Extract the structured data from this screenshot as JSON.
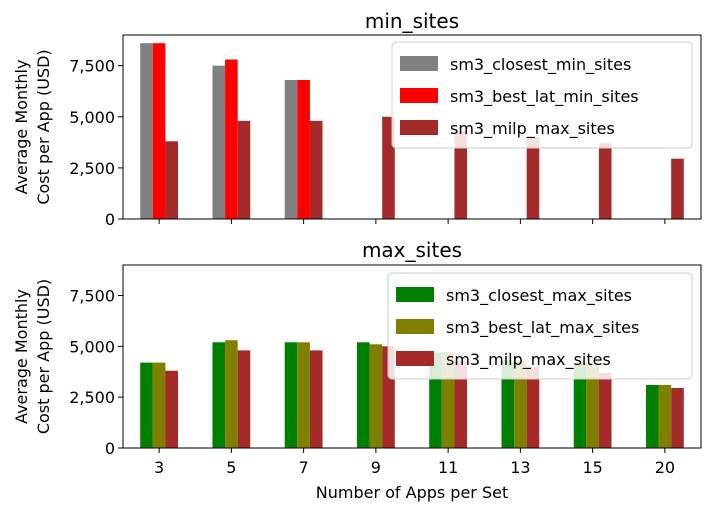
{
  "chart_data": [
    {
      "type": "bar",
      "title": "min_sites",
      "ylabel_lines": [
        "Average Monthly",
        "Cost per App (USD)"
      ],
      "xlabel": "",
      "categories": [
        "3",
        "5",
        "7",
        "9",
        "11",
        "13",
        "15",
        "20"
      ],
      "ylim": [
        0,
        9000
      ],
      "yticks": [
        0,
        2500,
        5000,
        7500
      ],
      "ytick_labels": [
        "0",
        "2,500",
        "5,000",
        "7,500"
      ],
      "show_xtick_labels": false,
      "legend_position": "top-right",
      "series": [
        {
          "name": "sm3_closest_min_sites",
          "color": "#808080",
          "values": [
            8600,
            7500,
            6800,
            null,
            null,
            null,
            null,
            null
          ]
        },
        {
          "name": "sm3_best_lat_min_sites",
          "color": "#ff0000",
          "values": [
            8600,
            7800,
            6800,
            null,
            null,
            null,
            null,
            null
          ]
        },
        {
          "name": "sm3_milp_max_sites",
          "color": "#a52a2a",
          "values": [
            3800,
            4800,
            4800,
            5000,
            4300,
            4000,
            3700,
            2950
          ]
        }
      ]
    },
    {
      "type": "bar",
      "title": "max_sites",
      "ylabel_lines": [
        "Average Monthly",
        "Cost per App (USD)"
      ],
      "xlabel": "Number of Apps per Set",
      "categories": [
        "3",
        "5",
        "7",
        "9",
        "11",
        "13",
        "15",
        "20"
      ],
      "ylim": [
        0,
        9000
      ],
      "yticks": [
        0,
        2500,
        5000,
        7500
      ],
      "ytick_labels": [
        "0",
        "2,500",
        "5,000",
        "7,500"
      ],
      "show_xtick_labels": true,
      "legend_position": "top-right",
      "series": [
        {
          "name": "sm3_closest_max_sites",
          "color": "#008000",
          "values": [
            4200,
            5200,
            5200,
            5200,
            4700,
            4300,
            4200,
            3100
          ]
        },
        {
          "name": "sm3_best_lat_max_sites",
          "color": "#808000",
          "values": [
            4200,
            5300,
            5200,
            5100,
            4700,
            4300,
            4200,
            3100
          ]
        },
        {
          "name": "sm3_milp_max_sites",
          "color": "#a52a2a",
          "values": [
            3800,
            4800,
            4800,
            5000,
            4300,
            4000,
            3700,
            2950
          ]
        }
      ]
    }
  ]
}
